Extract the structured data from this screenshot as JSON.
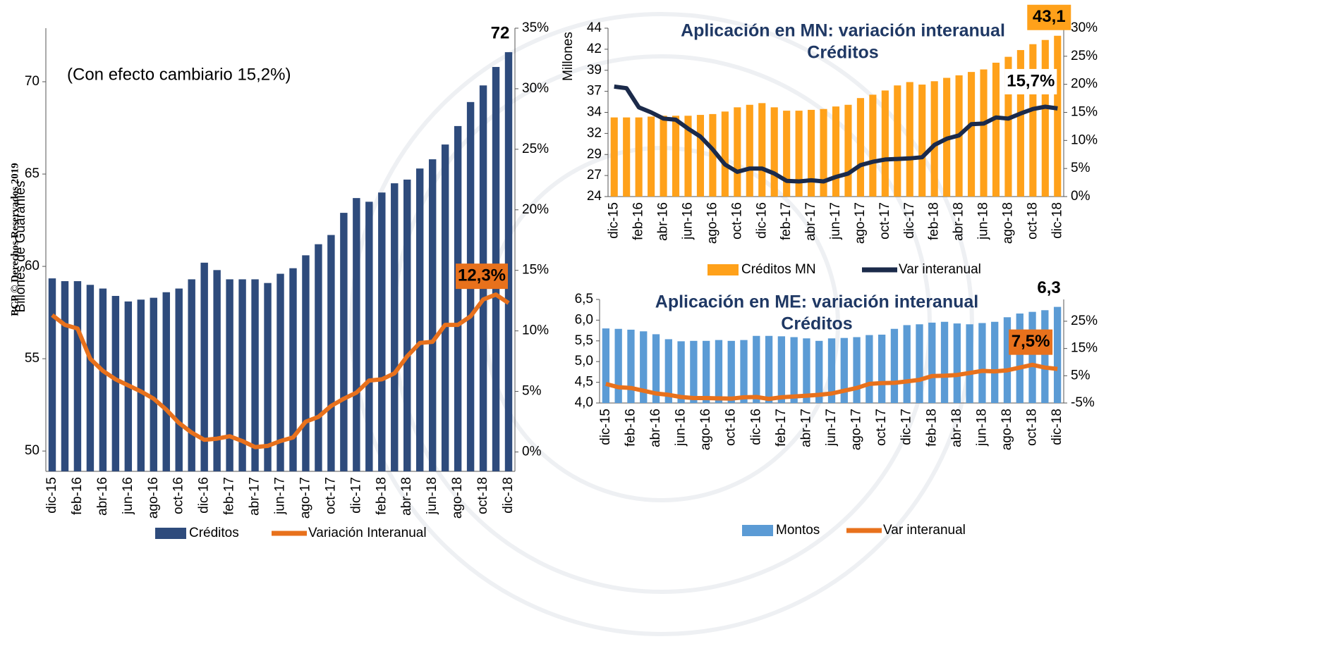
{
  "watermark": "BCP © Derechos Reservados 2019",
  "chart_data": [
    {
      "type": "bar_line",
      "annotation": "(Con efecto cambiario  15,2%)",
      "ylabel": "Billones de Guaraníes",
      "categories": [
        "dic-15",
        null,
        "feb-16",
        null,
        "abr-16",
        null,
        "jun-16",
        null,
        "ago-16",
        null,
        "oct-16",
        null,
        "dic-16",
        null,
        "feb-17",
        null,
        "abr-17",
        null,
        "jun-17",
        null,
        "ago-17",
        null,
        "oct-17",
        null,
        "dic-17",
        null,
        "feb-18",
        null,
        "abr-18",
        null,
        "jun-18",
        null,
        "ago-18",
        null,
        "oct-18",
        null,
        "dic-18"
      ],
      "series": [
        {
          "name": "Créditos",
          "type": "bar",
          "color": "#2e4b7c",
          "values": [
            59.35,
            59.2,
            59.2,
            59.0,
            58.8,
            58.4,
            58.1,
            58.2,
            58.3,
            58.6,
            58.8,
            59.3,
            60.2,
            59.8,
            59.3,
            59.3,
            59.3,
            59.1,
            59.6,
            59.9,
            60.6,
            61.2,
            61.7,
            62.9,
            63.7,
            63.5,
            64.0,
            64.5,
            64.7,
            65.3,
            65.8,
            66.6,
            67.6,
            68.9,
            69.8,
            70.8,
            71.6
          ],
          "value_labels": [
            null,
            null,
            null,
            null,
            null,
            null,
            null,
            null,
            null,
            null,
            null,
            null,
            null,
            null,
            null,
            null,
            null,
            null,
            null,
            null,
            null,
            null,
            null,
            null,
            null,
            null,
            null,
            null,
            null,
            null,
            null,
            null,
            null,
            null,
            null,
            null,
            "72"
          ]
        },
        {
          "name": "Variación  Interanual",
          "type": "line",
          "axis": "y2",
          "color": "#e8711c",
          "values": [
            11.3,
            10.5,
            10.2,
            7.7,
            6.7,
            6.0,
            5.5,
            5.0,
            4.4,
            3.5,
            2.4,
            1.6,
            1.0,
            1.1,
            1.3,
            0.9,
            0.4,
            0.5,
            0.9,
            1.2,
            2.5,
            2.9,
            3.8,
            4.4,
            4.9,
            5.9,
            6.0,
            6.5,
            7.9,
            9.0,
            9.1,
            10.5,
            10.5,
            11.2,
            12.6,
            13.0,
            12.3
          ],
          "value_labels": [
            null,
            null,
            null,
            null,
            null,
            null,
            null,
            null,
            null,
            null,
            null,
            null,
            null,
            null,
            null,
            null,
            null,
            null,
            null,
            null,
            null,
            null,
            null,
            null,
            null,
            null,
            null,
            null,
            null,
            null,
            null,
            null,
            null,
            null,
            null,
            null,
            "12,3%"
          ]
        }
      ],
      "ylim": [
        48.9,
        72.9
      ],
      "yticks": [
        50,
        55,
        60,
        65,
        70
      ],
      "y2lim": [
        -1.6,
        35
      ],
      "y2ticks": [
        {
          "value": 0,
          "label": "0%"
        },
        {
          "value": 5,
          "label": "5%"
        },
        {
          "value": 10,
          "label": "10%"
        },
        {
          "value": 15,
          "label": "15%"
        },
        {
          "value": 20,
          "label": "20%"
        },
        {
          "value": 25,
          "label": "25%"
        },
        {
          "value": 30,
          "label": "30%"
        },
        {
          "value": 35,
          "label": "35%"
        }
      ],
      "legend": "bottom"
    },
    {
      "type": "bar_line",
      "title": [
        "Aplicación en MN: variación interanual",
        "Créditos"
      ],
      "ylabel": "Millones",
      "categories": [
        "dic-15",
        null,
        "feb-16",
        null,
        "abr-16",
        null,
        "jun-16",
        null,
        "ago-16",
        null,
        "oct-16",
        null,
        "dic-16",
        null,
        "feb-17",
        null,
        "abr-17",
        null,
        "jun-17",
        null,
        "ago-17",
        null,
        "oct-17",
        null,
        "dic-17",
        null,
        "feb-18",
        null,
        "abr-18",
        null,
        "jun-18",
        null,
        "ago-18",
        null,
        "oct-18",
        null,
        "dic-18"
      ],
      "series": [
        {
          "name": "Créditos MN",
          "type": "bar",
          "color": "#ffa11a",
          "values": [
            33.4,
            33.4,
            33.4,
            33.5,
            33.6,
            33.6,
            33.6,
            33.7,
            33.8,
            34.1,
            34.6,
            34.9,
            35.1,
            34.6,
            34.2,
            34.2,
            34.3,
            34.4,
            34.7,
            34.9,
            35.7,
            36.1,
            36.6,
            37.2,
            37.6,
            37.3,
            37.7,
            38.1,
            38.4,
            38.8,
            39.1,
            39.9,
            40.6,
            41.4,
            42.1,
            42.6,
            43.1
          ],
          "value_labels": [
            null,
            null,
            null,
            null,
            null,
            null,
            null,
            null,
            null,
            null,
            null,
            null,
            null,
            null,
            null,
            null,
            null,
            null,
            null,
            null,
            null,
            null,
            null,
            null,
            null,
            null,
            null,
            null,
            null,
            null,
            null,
            null,
            null,
            null,
            null,
            null,
            "43,1"
          ]
        },
        {
          "name": "Var interanual",
          "type": "line",
          "axis": "y2",
          "color": "#1b2a4a",
          "values": [
            19.6,
            19.3,
            15.9,
            15.0,
            13.9,
            13.7,
            12.1,
            10.7,
            8.4,
            5.7,
            4.4,
            5.0,
            5.0,
            4.1,
            2.8,
            2.7,
            2.9,
            2.7,
            3.5,
            4.1,
            5.6,
            6.2,
            6.6,
            6.7,
            6.8,
            7.0,
            9.2,
            10.3,
            10.9,
            12.9,
            13.0,
            14.1,
            13.9,
            14.8,
            15.6,
            16.0,
            15.7
          ],
          "value_labels": [
            null,
            null,
            null,
            null,
            null,
            null,
            null,
            null,
            null,
            null,
            null,
            null,
            null,
            null,
            null,
            null,
            null,
            null,
            null,
            null,
            null,
            null,
            null,
            null,
            null,
            null,
            null,
            null,
            null,
            null,
            null,
            null,
            null,
            null,
            null,
            null,
            "15,7%"
          ]
        }
      ],
      "ylim": [
        24,
        44
      ],
      "yticks": [
        24,
        {
          "value": 26.5,
          "label": "27"
        },
        29,
        {
          "value": 31.5,
          "label": "32"
        },
        34,
        {
          "value": 36.5,
          "label": "37"
        },
        39,
        {
          "value": 41.5,
          "label": "42"
        },
        44
      ],
      "y2lim": [
        0,
        30
      ],
      "y2ticks": [
        {
          "value": 0,
          "label": "0%"
        },
        {
          "value": 5,
          "label": "5%"
        },
        {
          "value": 10,
          "label": "10%"
        },
        {
          "value": 15,
          "label": "15%"
        },
        {
          "value": 20,
          "label": "20%"
        },
        {
          "value": 25,
          "label": "25%"
        },
        {
          "value": 30,
          "label": "30%"
        }
      ],
      "legend": "bottom"
    },
    {
      "type": "bar_line",
      "title": [
        "Aplicación en ME: variación interanual",
        "Créditos"
      ],
      "categories": [
        "dic-15",
        null,
        "feb-16",
        null,
        "abr-16",
        null,
        "jun-16",
        null,
        "ago-16",
        null,
        "oct-16",
        null,
        "dic-16",
        null,
        "feb-17",
        null,
        "abr-17",
        null,
        "jun-17",
        null,
        "ago-17",
        null,
        "oct-17",
        null,
        "dic-17",
        null,
        "feb-18",
        null,
        "abr-18",
        null,
        "jun-18",
        null,
        "ago-18",
        null,
        "oct-18",
        null,
        "dic-18"
      ],
      "series": [
        {
          "name": "Montos",
          "type": "bar",
          "color": "#5b9bd5",
          "values": [
            5.8,
            5.79,
            5.77,
            5.73,
            5.66,
            5.54,
            5.49,
            5.5,
            5.5,
            5.52,
            5.5,
            5.52,
            5.62,
            5.62,
            5.61,
            5.59,
            5.56,
            5.5,
            5.56,
            5.57,
            5.59,
            5.64,
            5.65,
            5.79,
            5.88,
            5.9,
            5.94,
            5.96,
            5.92,
            5.9,
            5.93,
            5.96,
            6.07,
            6.16,
            6.2,
            6.24,
            6.32
          ],
          "value_labels": [
            null,
            null,
            null,
            null,
            null,
            null,
            null,
            null,
            null,
            null,
            null,
            null,
            null,
            null,
            null,
            null,
            null,
            null,
            null,
            null,
            null,
            null,
            null,
            null,
            null,
            null,
            null,
            null,
            null,
            null,
            null,
            null,
            null,
            null,
            null,
            null,
            "6,3"
          ]
        },
        {
          "name": "Var interanual",
          "type": "line",
          "axis": "y2",
          "color": "#e8711c",
          "values": [
            2.0,
            0.8,
            0.5,
            -0.5,
            -1.5,
            -2.0,
            -2.8,
            -3.2,
            -3.2,
            -3.3,
            -3.4,
            -2.9,
            -2.8,
            -3.5,
            -2.9,
            -2.6,
            -2.3,
            -2.0,
            -1.5,
            -0.5,
            0.5,
            2.0,
            2.3,
            2.4,
            2.9,
            3.5,
            4.9,
            5.0,
            5.3,
            6.0,
            6.8,
            6.6,
            7.0,
            8.0,
            9.0,
            8.0,
            7.5
          ],
          "value_labels": [
            null,
            null,
            null,
            null,
            null,
            null,
            null,
            null,
            null,
            null,
            null,
            null,
            null,
            null,
            null,
            null,
            null,
            null,
            null,
            null,
            null,
            null,
            null,
            null,
            null,
            null,
            null,
            null,
            null,
            null,
            null,
            null,
            null,
            null,
            null,
            null,
            "7,5%"
          ]
        }
      ],
      "ylim": [
        4,
        6.5
      ],
      "yticks": [
        {
          "value": 4,
          "label": "4,0"
        },
        {
          "value": 4.5,
          "label": "4,5"
        },
        {
          "value": 5,
          "label": "5,0"
        },
        {
          "value": 5.5,
          "label": "5,5"
        },
        {
          "value": 6,
          "label": "6,0"
        },
        {
          "value": 6.5,
          "label": "6,5"
        }
      ],
      "y2lim": [
        -5,
        33
      ],
      "y2ticks": [
        {
          "value": -5,
          "label": "-5%"
        },
        {
          "value": 5,
          "label": "5%"
        },
        {
          "value": 15,
          "label": "15%"
        },
        {
          "value": 25,
          "label": "25%"
        }
      ],
      "legend": "bottom"
    }
  ]
}
